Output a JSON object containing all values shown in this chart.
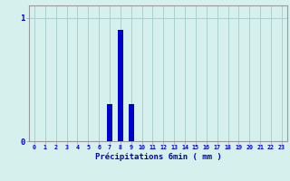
{
  "title": "",
  "xlabel": "Précipitations 6min ( mm )",
  "hours": [
    0,
    1,
    2,
    3,
    4,
    5,
    6,
    7,
    8,
    9,
    10,
    11,
    12,
    13,
    14,
    15,
    16,
    17,
    18,
    19,
    20,
    21,
    22,
    23
  ],
  "values": [
    0,
    0,
    0,
    0,
    0,
    0,
    0,
    0.3,
    0.9,
    0.3,
    0,
    0,
    0,
    0,
    0,
    0,
    0,
    0,
    0,
    0,
    0,
    0,
    0,
    0
  ],
  "bar_color": "#0000cc",
  "bg_color": "#d6f0ee",
  "grid_color": "#aacfcc",
  "ytick_labels": [
    "0",
    "1"
  ],
  "ytick_values": [
    0,
    1
  ],
  "ylim": [
    0,
    1.1
  ],
  "xlim": [
    -0.5,
    23.5
  ],
  "xlabel_color": "#0000cc",
  "tick_color": "#0000cc",
  "axes_color": "#999999",
  "bar_width": 0.5
}
